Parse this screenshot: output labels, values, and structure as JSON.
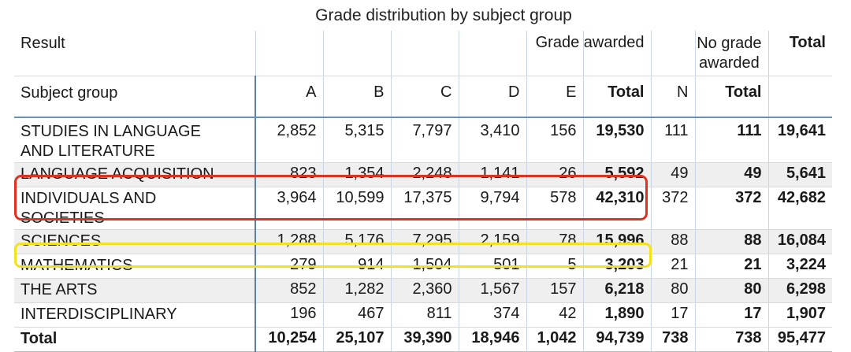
{
  "title": "Grade distribution by subject group",
  "header": {
    "result_label": "Result",
    "grade_awarded_label": "Grade awarded",
    "no_grade_label_line1": "No grade",
    "no_grade_label_line2": "awarded",
    "total_label": "Total",
    "subject_group_label": "Subject group",
    "col_a": "A",
    "col_b": "B",
    "col_c": "C",
    "col_d": "D",
    "col_e": "E",
    "col_total": "Total",
    "col_n": "N",
    "col_no_total": "Total"
  },
  "chart_data": {
    "type": "table",
    "title": "Grade distribution by subject group",
    "columns": [
      "Subject group",
      "A",
      "B",
      "C",
      "D",
      "E",
      "Total",
      "N",
      "Total",
      "Total"
    ],
    "rows": [
      {
        "group": "STUDIES IN LANGUAGE AND LITERATURE",
        "line1": "STUDIES IN LANGUAGE",
        "line2": "AND LITERATURE",
        "A": "2,852",
        "B": "5,315",
        "C": "7,797",
        "D": "3,410",
        "E": "156",
        "total": "19,530",
        "N": "111",
        "no_total": "111",
        "grand_total": "19,641"
      },
      {
        "group": "LANGUAGE ACQUISITION",
        "line1": "LANGUAGE ACQUISITION",
        "line2": "",
        "A": "823",
        "B": "1,354",
        "C": "2,248",
        "D": "1,141",
        "E": "26",
        "total": "5,592",
        "N": "49",
        "no_total": "49",
        "grand_total": "5,641"
      },
      {
        "group": "INDIVIDUALS AND SOCIETIES",
        "line1": "INDIVIDUALS AND",
        "line2": "SOCIETIES",
        "A": "3,964",
        "B": "10,599",
        "C": "17,375",
        "D": "9,794",
        "E": "578",
        "total": "42,310",
        "N": "372",
        "no_total": "372",
        "grand_total": "42,682"
      },
      {
        "group": "SCIENCES",
        "line1": "SCIENCES",
        "line2": "",
        "A": "1,288",
        "B": "5,176",
        "C": "7,295",
        "D": "2,159",
        "E": "78",
        "total": "15,996",
        "N": "88",
        "no_total": "88",
        "grand_total": "16,084"
      },
      {
        "group": "MATHEMATICS",
        "line1": "MATHEMATICS",
        "line2": "",
        "A": "279",
        "B": "914",
        "C": "1,504",
        "D": "501",
        "E": "5",
        "total": "3,203",
        "N": "21",
        "no_total": "21",
        "grand_total": "3,224"
      },
      {
        "group": "THE ARTS",
        "line1": "THE ARTS",
        "line2": "",
        "A": "852",
        "B": "1,282",
        "C": "2,360",
        "D": "1,567",
        "E": "157",
        "total": "6,218",
        "N": "80",
        "no_total": "80",
        "grand_total": "6,298"
      },
      {
        "group": "INTERDISCIPLINARY",
        "line1": "INTERDISCIPLINARY",
        "line2": "",
        "A": "196",
        "B": "467",
        "C": "811",
        "D": "374",
        "E": "42",
        "total": "1,890",
        "N": "17",
        "no_total": "17",
        "grand_total": "1,907"
      }
    ],
    "totals": {
      "label": "Total",
      "A": "10,254",
      "B": "25,107",
      "C": "39,390",
      "D": "18,946",
      "E": "1,042",
      "total": "94,739",
      "N": "738",
      "no_total": "738",
      "grand_total": "95,477"
    },
    "highlights": [
      {
        "row": "INDIVIDUALS AND SOCIETIES",
        "color": "#e0301e"
      },
      {
        "row": "MATHEMATICS",
        "color": "#f3e21b"
      }
    ]
  },
  "colors": {
    "row_shade": "#efefef",
    "highlight_red": "#e0301e",
    "highlight_yellow": "#f3e21b",
    "header_rule": "#6b8fb8"
  }
}
